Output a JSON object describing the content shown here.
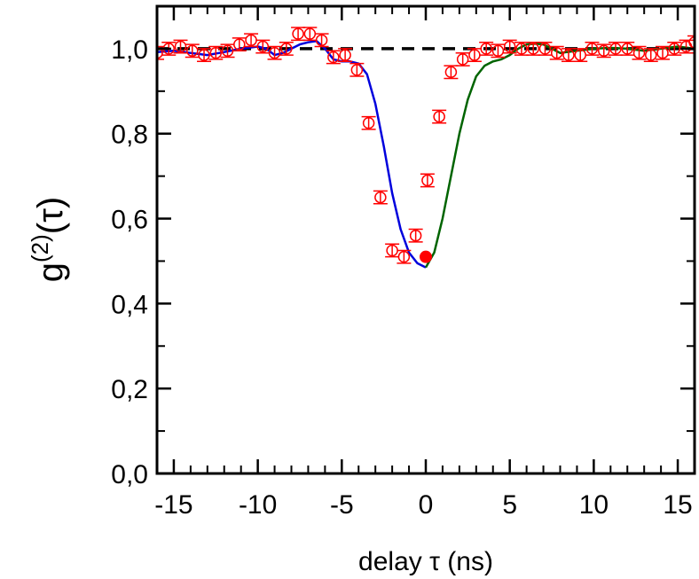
{
  "chart_data": {
    "type": "scatter",
    "xlabel": "delay τ (ns)",
    "ylabel": {
      "base": "g",
      "superscript": "(2)",
      "suffix": "(τ)"
    },
    "xlim": [
      -16,
      16
    ],
    "ylim": [
      0,
      1.1
    ],
    "x_ticks": [
      -15,
      -10,
      -5,
      0,
      5,
      10,
      15
    ],
    "x_tick_labels": [
      "-15",
      "-10",
      "-5",
      "0",
      "5",
      "10",
      "15"
    ],
    "y_ticks": [
      0,
      0.2,
      0.4,
      0.6,
      0.8,
      1.0
    ],
    "y_tick_labels": [
      "0,0",
      "0,2",
      "0,4",
      "0,6",
      "0,8",
      "1,0"
    ],
    "grid": false,
    "series": [
      {
        "kind": "points-with-errorbars",
        "color": "#ff0000",
        "marker": "open-circle",
        "error": 0.015,
        "x": [
          -16.0,
          -15.3,
          -14.6,
          -13.9,
          -13.2,
          -12.5,
          -11.8,
          -11.1,
          -10.4,
          -9.7,
          -9.0,
          -8.3,
          -7.6,
          -6.9,
          -6.2,
          -5.5,
          -4.8,
          -4.1,
          -3.4,
          -2.7,
          -2.0,
          -1.3,
          -0.6,
          0.1,
          0.8,
          1.5,
          2.2,
          2.9,
          3.6,
          4.3,
          5.0,
          5.7,
          6.4,
          7.1,
          7.8,
          8.5,
          9.2,
          9.9,
          10.6,
          11.3,
          12.0,
          12.7,
          13.4,
          14.1,
          14.8,
          15.5,
          16.0
        ],
        "y": [
          0.99,
          1.0,
          1.005,
          0.995,
          0.985,
          0.99,
          0.995,
          1.01,
          1.02,
          1.005,
          0.99,
          1.0,
          1.035,
          1.035,
          1.02,
          0.98,
          0.985,
          0.95,
          0.825,
          0.65,
          0.525,
          0.51,
          0.56,
          0.69,
          0.84,
          0.945,
          0.975,
          0.985,
          1.0,
          0.995,
          1.005,
          1.0,
          1.0,
          1.0,
          0.99,
          0.985,
          0.985,
          1.0,
          0.995,
          1.0,
          1.0,
          0.99,
          0.985,
          0.99,
          1.0,
          1.005,
          1.015
        ]
      },
      {
        "kind": "highlight-point",
        "color": "#ff0000",
        "marker": "filled-circle",
        "x": [
          0
        ],
        "y": [
          0.51
        ]
      },
      {
        "kind": "line",
        "color": "#0000dd",
        "x": [
          -16,
          -15,
          -14,
          -13,
          -12,
          -11,
          -10,
          -9.5,
          -9,
          -8.5,
          -8,
          -7.5,
          -7,
          -6.5,
          -6,
          -5.5,
          -5,
          -4.5,
          -4,
          -3.5,
          -3,
          -2.5,
          -2,
          -1.5,
          -1,
          -0.5,
          0
        ],
        "y": [
          0.992,
          0.995,
          0.99,
          0.985,
          0.992,
          1.0,
          1.005,
          1.0,
          0.985,
          0.99,
          1.0,
          1.01,
          1.015,
          1.018,
          1.0,
          0.975,
          0.97,
          0.97,
          0.965,
          0.94,
          0.87,
          0.77,
          0.66,
          0.575,
          0.52,
          0.495,
          0.485
        ]
      },
      {
        "kind": "line",
        "color": "#006400",
        "x": [
          0,
          0.5,
          1,
          1.5,
          2,
          2.5,
          3,
          3.5,
          4,
          4.5,
          5,
          5.5,
          6,
          6.5,
          7,
          7.5,
          8,
          9,
          10,
          11,
          12,
          13,
          14,
          15,
          16
        ],
        "y": [
          0.485,
          0.52,
          0.6,
          0.7,
          0.8,
          0.88,
          0.935,
          0.96,
          0.97,
          0.975,
          0.985,
          1.0,
          1.01,
          1.012,
          1.01,
          1.0,
          0.99,
          0.995,
          1.0,
          1.002,
          1.0,
          0.995,
          1.0,
          1.005,
          1.0
        ]
      },
      {
        "kind": "reference-line",
        "color": "#000000",
        "dashed": true,
        "y": 1.0
      }
    ]
  }
}
